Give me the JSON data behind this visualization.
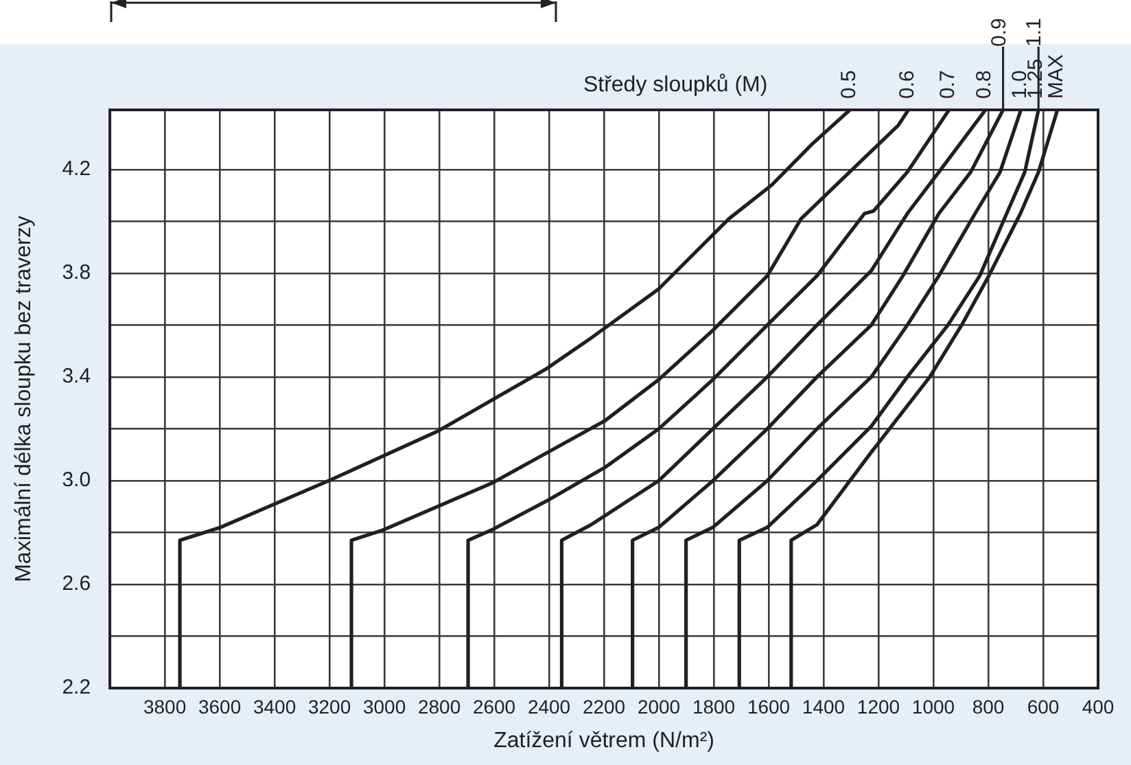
{
  "chart_data": {
    "type": "line",
    "xlabel": "Zatížení větrem (N/m²)",
    "ylabel": "Maximální délka sloupku bez traverzy",
    "legend_title": "Středy sloupků (M)",
    "xlim": [
      4000,
      400
    ],
    "xticks": [
      3800,
      3600,
      3400,
      3200,
      3000,
      2800,
      2600,
      2400,
      2200,
      2000,
      1800,
      1600,
      1400,
      1200,
      1000,
      800,
      600,
      400
    ],
    "ylim": [
      2.2,
      4.43
    ],
    "yticks": [
      2.2,
      {
        "value": 2.4,
        "label": null
      },
      2.6,
      {
        "value": 2.8,
        "label": null
      },
      {
        "value": 3.0,
        "label": "3.0"
      },
      {
        "value": 3.2,
        "label": null
      },
      3.4,
      {
        "value": 3.6,
        "label": null
      },
      3.8,
      {
        "value": 4.0,
        "label": null
      },
      4.2
    ],
    "grid": true,
    "legend": "top right",
    "marker": "none",
    "line_style": "solid",
    "series": [
      {
        "name": "0.5",
        "color": "#231f20",
        "x": [
          3745,
          3745,
          3597,
          3202,
          2807,
          2412,
          2247,
          2000,
          1745,
          1589,
          1440,
          1304
        ],
        "values": [
          2.2,
          2.77,
          2.82,
          3.0,
          3.19,
          3.43,
          3.55,
          3.74,
          4.01,
          4.14,
          4.3,
          4.43
        ]
      },
      {
        "name": "0.6",
        "color": "#231f20",
        "x": [
          3120,
          3120,
          3004,
          2609,
          2198,
          2000,
          1803,
          1605,
          1482,
          1325,
          1128,
          1091
        ],
        "values": [
          2.2,
          2.77,
          2.81,
          2.99,
          3.23,
          3.39,
          3.58,
          3.79,
          4.01,
          4.17,
          4.37,
          4.43
        ]
      },
      {
        "name": "0.7",
        "color": "#231f20",
        "x": [
          2695,
          2695,
          2609,
          2412,
          2198,
          2000,
          1803,
          1605,
          1424,
          1251,
          1218,
          1095,
          943
        ],
        "values": [
          2.2,
          2.77,
          2.81,
          2.92,
          3.05,
          3.2,
          3.39,
          3.6,
          3.79,
          4.03,
          4.04,
          4.19,
          4.43
        ]
      },
      {
        "name": "0.8",
        "color": "#231f20",
        "x": [
          2354,
          2354,
          2247,
          2000,
          1803,
          1605,
          1424,
          1226,
          1095,
          980,
          810
        ],
        "values": [
          2.2,
          2.77,
          2.83,
          3.0,
          3.2,
          3.4,
          3.6,
          3.81,
          4.03,
          4.19,
          4.43
        ]
      },
      {
        "name": "0.9",
        "color": "#231f20",
        "x": [
          2096,
          2096,
          2000,
          1803,
          1605,
          1424,
          1226,
          1111,
          980,
          864,
          746
        ],
        "values": [
          2.2,
          2.77,
          2.82,
          3.0,
          3.2,
          3.4,
          3.6,
          3.79,
          4.03,
          4.19,
          4.43
        ]
      },
      {
        "name": "1.0",
        "color": "#231f20",
        "x": [
          1901,
          1901,
          1803,
          1605,
          1424,
          1226,
          1095,
          980,
          848,
          757,
          681
        ],
        "values": [
          2.2,
          2.77,
          2.82,
          3.0,
          3.2,
          3.4,
          3.6,
          3.79,
          4.03,
          4.19,
          4.43
        ]
      },
      {
        "name": "1.1",
        "color": "#231f20",
        "x": [
          1707,
          1707,
          1605,
          1424,
          1226,
          1095,
          947,
          831,
          733,
          667,
          617
        ],
        "values": [
          2.2,
          2.77,
          2.82,
          3.0,
          3.21,
          3.4,
          3.6,
          3.79,
          4.03,
          4.19,
          4.43
        ]
      },
      {
        "name": "1.25 MAX",
        "color": "#231f20",
        "x": [
          1518,
          1518,
          1424,
          1226,
          1013,
          897,
          798,
          683,
          617,
          548
        ],
        "values": [
          2.2,
          2.77,
          2.83,
          3.11,
          3.4,
          3.6,
          3.79,
          4.03,
          4.19,
          4.43
        ]
      }
    ]
  }
}
